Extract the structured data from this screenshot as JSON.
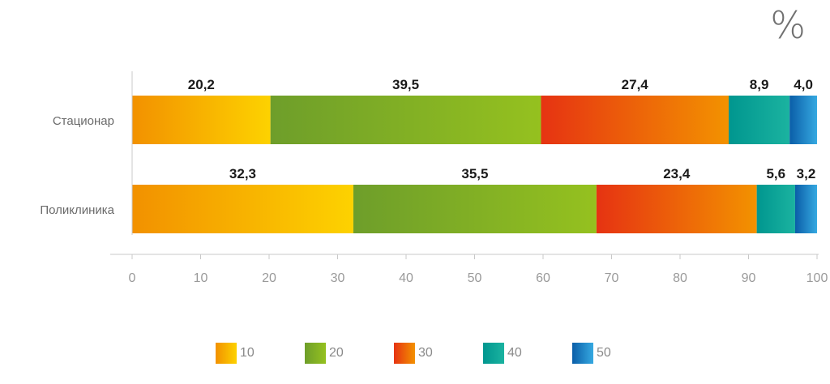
{
  "unit_label": "%",
  "chart_data": {
    "type": "bar",
    "orientation": "horizontal",
    "stacked": true,
    "categories": [
      "Стационар",
      "Поликлиника"
    ],
    "series": [
      {
        "name": "10",
        "values": [
          20.2,
          32.3
        ],
        "labels": [
          "20,2",
          "32,3"
        ],
        "color_from": "#F29100",
        "color_to": "#FDD200"
      },
      {
        "name": "20",
        "values": [
          39.5,
          35.5
        ],
        "labels": [
          "39,5",
          "35,5"
        ],
        "color_from": "#6E9E2A",
        "color_to": "#95C11F"
      },
      {
        "name": "30",
        "values": [
          27.4,
          23.4
        ],
        "labels": [
          "27,4",
          "23,4"
        ],
        "color_from": "#E63312",
        "color_to": "#F39200"
      },
      {
        "name": "40",
        "values": [
          8.9,
          5.6
        ],
        "labels": [
          "8,9",
          "5,6"
        ],
        "color_from": "#00968F",
        "color_to": "#1BB3A0"
      },
      {
        "name": "50",
        "values": [
          4.0,
          3.2
        ],
        "labels": [
          "4,0",
          "3,2"
        ],
        "color_from": "#0A5EA8",
        "color_to": "#36A9E1"
      }
    ],
    "xlim": [
      0,
      100
    ],
    "xticks": [
      0,
      10,
      20,
      30,
      40,
      50,
      60,
      70,
      80,
      90,
      100
    ],
    "legend_position": "bottom",
    "grid": false
  }
}
